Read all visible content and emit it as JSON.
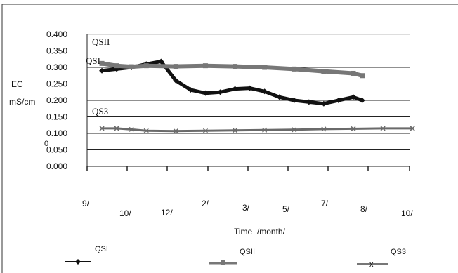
{
  "chart_data": {
    "type": "line",
    "title": "",
    "ylabel_lines": [
      "EC",
      "mS/cm"
    ],
    "xlabel": "Time  /month/",
    "ylim": [
      0,
      0.4
    ],
    "y_ticks": [
      "0.000",
      "0.050",
      "0.100",
      "0.150",
      "0.200",
      "0.250",
      "0.300",
      "0.350",
      "0.400"
    ],
    "x_ticks": [
      "9/",
      "10/",
      "12/",
      "2/",
      "3/",
      "5/",
      "7/",
      "8/",
      "10/"
    ],
    "grid": true,
    "legend_placement": "bottom",
    "series": [
      {
        "name": "QSI",
        "color": "#111111",
        "marker": "diamond",
        "points": [
          [
            0.5,
            0.29
          ],
          [
            1,
            0.295
          ],
          [
            1.5,
            0.3
          ],
          [
            2,
            0.31
          ],
          [
            2.5,
            0.318
          ],
          [
            3,
            0.26
          ],
          [
            3.5,
            0.232
          ],
          [
            4,
            0.222
          ],
          [
            4.5,
            0.225
          ],
          [
            5,
            0.235
          ],
          [
            5.5,
            0.237
          ],
          [
            6,
            0.227
          ],
          [
            6.5,
            0.21
          ],
          [
            7,
            0.2
          ],
          [
            7.5,
            0.195
          ],
          [
            8,
            0.19
          ],
          [
            8.5,
            0.2
          ],
          [
            9,
            0.21
          ],
          [
            9.3,
            0.2
          ]
        ]
      },
      {
        "name": "QSII",
        "color": "#777777",
        "marker": "square",
        "points": [
          [
            0.5,
            0.312
          ],
          [
            1,
            0.305
          ],
          [
            1.5,
            0.302
          ],
          [
            2,
            0.305
          ],
          [
            3,
            0.303
          ],
          [
            4,
            0.305
          ],
          [
            5,
            0.303
          ],
          [
            6,
            0.3
          ],
          [
            7,
            0.295
          ],
          [
            8,
            0.288
          ],
          [
            9,
            0.282
          ],
          [
            9.3,
            0.275
          ]
        ]
      },
      {
        "name": "QS3",
        "color": "#6a6a6a",
        "marker": "x",
        "points": [
          [
            0.5,
            0.115
          ],
          [
            1,
            0.115
          ],
          [
            1.5,
            0.112
          ],
          [
            2,
            0.108
          ],
          [
            3,
            0.107
          ],
          [
            4,
            0.108
          ],
          [
            5,
            0.109
          ],
          [
            6,
            0.11
          ],
          [
            7,
            0.111
          ],
          [
            8,
            0.113
          ],
          [
            9,
            0.114
          ],
          [
            10,
            0.115
          ],
          [
            11,
            0.115
          ]
        ]
      }
    ],
    "series_labels": {
      "QSII": "QSII",
      "QSI": "QSI",
      "QS3": "QS3"
    },
    "stray_label": "0"
  }
}
